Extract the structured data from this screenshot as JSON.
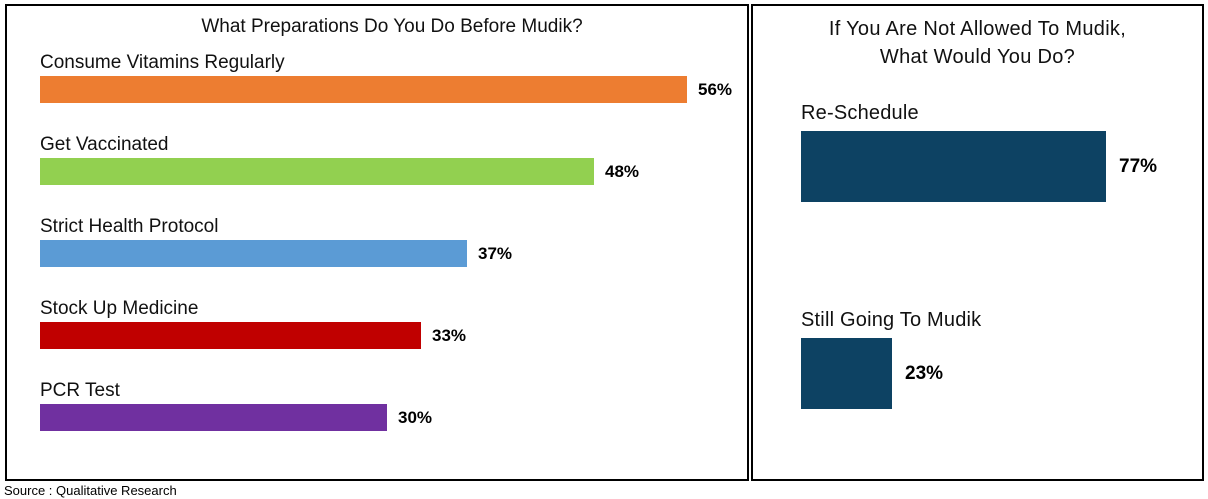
{
  "source_note": "Source : Qualitative Research",
  "chart_data": [
    {
      "type": "bar",
      "orientation": "horizontal",
      "title": "What Preparations Do You Do Before Mudik?",
      "categories": [
        "Consume Vitamins Regularly",
        "Get Vaccinated",
        "Strict Health Protocol",
        "Stock Up Medicine",
        "PCR Test"
      ],
      "values": [
        56,
        48,
        37,
        33,
        30
      ],
      "unit": "%",
      "data_labels": [
        "56%",
        "48%",
        "37%",
        "33%",
        "30%"
      ],
      "bar_colors": [
        "#ED7D31",
        "#92D050",
        "#5B9BD5",
        "#C00000",
        "#7030A0"
      ],
      "xlim": [
        0,
        62
      ],
      "grid": false,
      "legend": false
    },
    {
      "type": "bar",
      "orientation": "horizontal",
      "title": "If You Are Not Allowed To Mudik, What Would You Do?",
      "title_lines": [
        "If You Are Not Allowed To Mudik,",
        "What Would You Do?"
      ],
      "categories": [
        "Re-Schedule",
        "Still Going To Mudik"
      ],
      "values": [
        77,
        23
      ],
      "unit": "%",
      "data_labels": [
        "77%",
        "23%"
      ],
      "bar_colors": [
        "#0D4263",
        "#0D4263"
      ],
      "xlim": [
        0,
        100
      ],
      "grid": false,
      "legend": false
    }
  ]
}
